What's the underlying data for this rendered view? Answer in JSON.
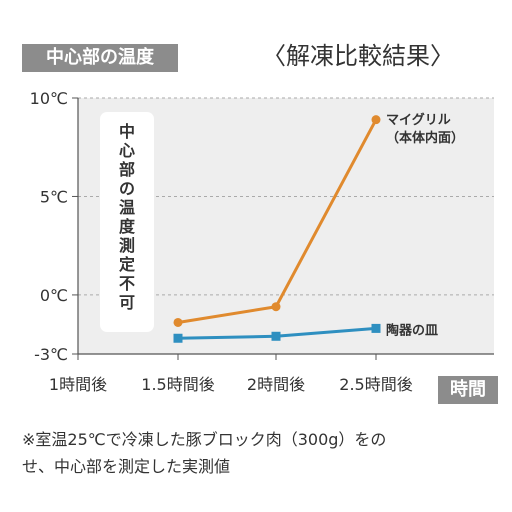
{
  "chart_data": {
    "type": "line",
    "title": "〈解凍比較結果〉",
    "ylabel": "中心部の温度",
    "xlabel": "時間",
    "categories": [
      "1時間後",
      "1.5時間後",
      "2時間後",
      "2.5時間後"
    ],
    "yticks": [
      "10℃",
      "5℃",
      "0℃",
      "-3℃"
    ],
    "ylim": [
      -3,
      10
    ],
    "series": [
      {
        "name": "マイグリル（本体内面）",
        "name_lines": [
          "マイグリル",
          "（本体内面）"
        ],
        "color": "#e08a2e",
        "marker": "circle",
        "x": [
          "1.5時間後",
          "2時間後",
          "2.5時間後"
        ],
        "values": [
          -1.4,
          -0.6,
          8.9
        ]
      },
      {
        "name": "陶器の皿",
        "name_lines": [
          "陶器の皿"
        ],
        "color": "#2e8fc0",
        "marker": "square",
        "x": [
          "1.5時間後",
          "2時間後",
          "2.5時間後"
        ],
        "values": [
          -2.2,
          -2.1,
          -1.7
        ]
      }
    ],
    "annotation": "中心部の温度測定不可",
    "grid": false,
    "plot_background": "#eeeeee"
  },
  "footnote": {
    "line1": "※室温25℃で冷凍した豚ブロック肉（300g）をの",
    "line2": "せ、中心部を測定した実測値"
  }
}
